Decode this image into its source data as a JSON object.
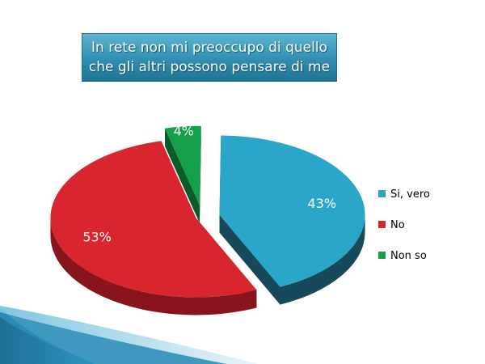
{
  "chart_data": {
    "type": "pie",
    "title_lines": [
      "In rete non mi preoccupo di quello",
      "che gli altri possono pensare di me"
    ],
    "slices": [
      {
        "name": "Si, vero",
        "value": 43,
        "label": "43%",
        "color": "#2aa6c9",
        "side_color": "#164a5a"
      },
      {
        "name": "No",
        "value": 53,
        "label": "53%",
        "color": "#d9252e",
        "side_color": "#8a141b"
      },
      {
        "name": "Non so",
        "value": 4,
        "label": "4%",
        "color": "#14a049",
        "side_color": "#0b5a28"
      }
    ],
    "legend_position": "right",
    "style": "3d-exploded"
  }
}
